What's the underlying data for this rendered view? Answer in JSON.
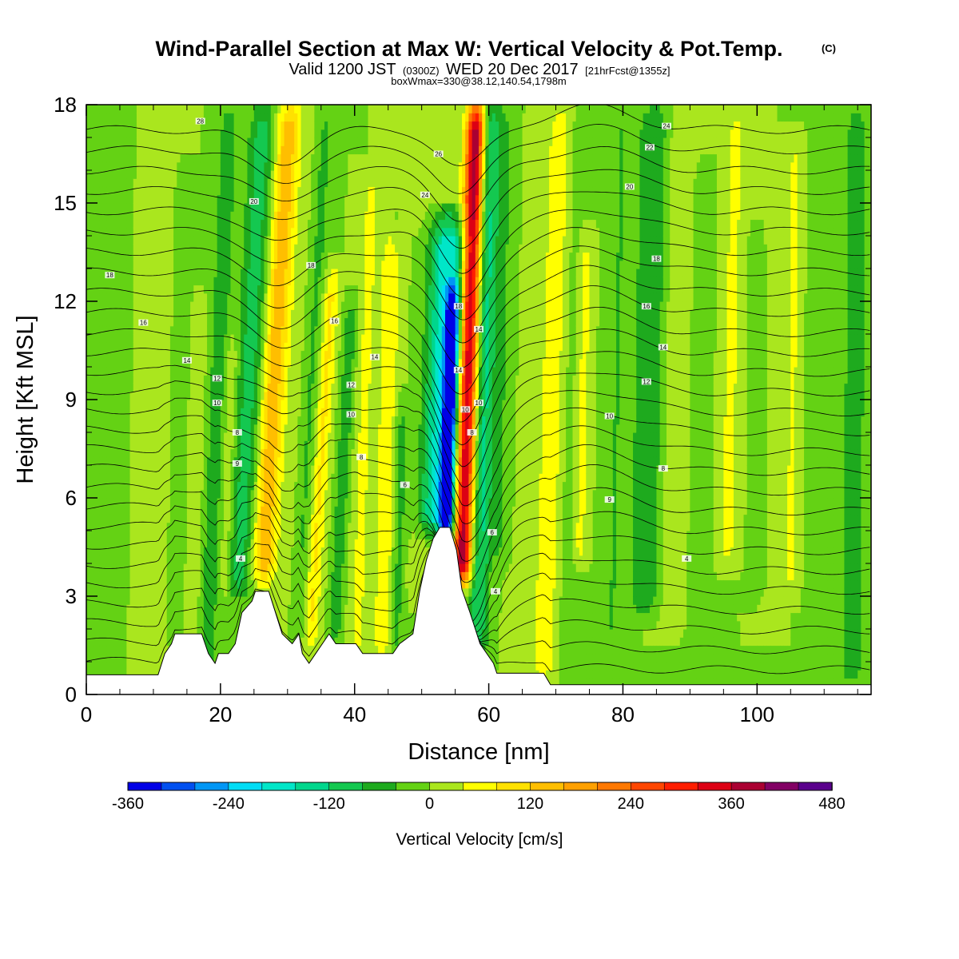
{
  "title": "Wind-Parallel Section at Max W: Vertical Velocity & Pot.Temp.",
  "title_mark": "(C)",
  "subtitle_parts": [
    "Valid 1200 JST",
    "(0300Z)",
    "WED 20 Dec 2017",
    "[21hrFcst@1355z]"
  ],
  "subtitle2": "boxWmax=330@38.12,140.54,1798m",
  "chart_data": {
    "type": "heatmap",
    "xlabel": "Distance [nm]",
    "ylabel": "Height [Kft MSL]",
    "xlim": [
      0,
      117
    ],
    "ylim": [
      0,
      18
    ],
    "x_ticks": [
      "0",
      "20",
      "40",
      "60",
      "80",
      "100"
    ],
    "y_ticks": [
      "0",
      "3",
      "6",
      "9",
      "12",
      "15",
      "18"
    ],
    "colorbar": {
      "title": "Vertical Velocity [cm/s]",
      "levels": [
        -360,
        -320,
        -280,
        -240,
        -200,
        -160,
        -120,
        -80,
        -40,
        0,
        40,
        80,
        120,
        160,
        200,
        240,
        280,
        320,
        360,
        400,
        440,
        480
      ],
      "colors": [
        "#0000e6",
        "#0050f0",
        "#0096f5",
        "#00dcf5",
        "#00e6c8",
        "#00d68c",
        "#14c850",
        "#1eaa1e",
        "#64d214",
        "#aae61e",
        "#ffff00",
        "#ffe100",
        "#ffbe00",
        "#ffa000",
        "#ff7800",
        "#ff4600",
        "#ff1e00",
        "#dc0014",
        "#aa0032",
        "#820064",
        "#5a008c"
      ],
      "tick_labels": [
        "-360",
        "-240",
        "-120",
        "0",
        "120",
        "240",
        "360",
        "480"
      ]
    },
    "terrain": [
      [
        0,
        0.6
      ],
      [
        10.7,
        0.6
      ],
      [
        11.7,
        1.25
      ],
      [
        12.7,
        1.55
      ],
      [
        13.2,
        1.85
      ],
      [
        17.2,
        1.85
      ],
      [
        18.2,
        1.25
      ],
      [
        19.2,
        0.95
      ],
      [
        19.7,
        1.25
      ],
      [
        21.2,
        1.25
      ],
      [
        22.2,
        1.55
      ],
      [
        23.2,
        2.5
      ],
      [
        24.7,
        2.85
      ],
      [
        25.2,
        3.15
      ],
      [
        27.2,
        3.15
      ],
      [
        28.2,
        2.5
      ],
      [
        29.2,
        1.85
      ],
      [
        30.7,
        1.55
      ],
      [
        31.7,
        1.85
      ],
      [
        32.2,
        1.25
      ],
      [
        33.2,
        0.95
      ],
      [
        34.2,
        1.25
      ],
      [
        35.2,
        1.55
      ],
      [
        36.2,
        1.85
      ],
      [
        37.2,
        1.55
      ],
      [
        40.2,
        1.55
      ],
      [
        41.2,
        1.25
      ],
      [
        45.7,
        1.25
      ],
      [
        46.7,
        1.55
      ],
      [
        48.7,
        1.85
      ],
      [
        49.7,
        3.15
      ],
      [
        50.7,
        4.1
      ],
      [
        51.7,
        4.75
      ],
      [
        52.7,
        5.1
      ],
      [
        54.2,
        5.1
      ],
      [
        55.2,
        4.4
      ],
      [
        56.0,
        3.2
      ],
      [
        57.2,
        2.5
      ],
      [
        58.7,
        1.55
      ],
      [
        60.7,
        0.95
      ],
      [
        61.2,
        0.65
      ],
      [
        68.2,
        0.65
      ],
      [
        69.2,
        0.3
      ],
      [
        117,
        0.3
      ]
    ],
    "w_field": {
      "background": 0,
      "features": [
        {
          "x": 54.2,
          "w": 0.9,
          "bot": 4.3,
          "top": 12.2,
          "lean": 0.15,
          "amp": -340
        },
        {
          "x": 53.2,
          "w": 3.0,
          "bot": 5.0,
          "top": 14.5,
          "lean": 0.18,
          "amp": -200
        },
        {
          "x": 56.8,
          "w": 1.4,
          "bot": 3.5,
          "top": 18,
          "lean": 0.15,
          "amp": 400
        },
        {
          "x": 59.2,
          "w": 1.4,
          "bot": 1.0,
          "top": 18,
          "lean": 0.12,
          "amp": -120
        },
        {
          "x": 27.8,
          "w": 1.8,
          "bot": 3.5,
          "top": 18,
          "lean": 0.28,
          "amp": 150
        },
        {
          "x": 24.2,
          "w": 2.0,
          "bot": 3.0,
          "top": 18,
          "lean": 0.25,
          "amp": -100
        },
        {
          "x": 19.5,
          "w": 1.6,
          "bot": 0,
          "top": 18,
          "lean": 0.2,
          "amp": -60
        },
        {
          "x": 35.5,
          "w": 1.2,
          "bot": 1.5,
          "top": 13,
          "lean": 0.3,
          "amp": 90
        },
        {
          "x": 38.8,
          "w": 1.0,
          "bot": 1.5,
          "top": 12,
          "lean": 0.25,
          "amp": -70
        },
        {
          "x": 45.0,
          "w": 1.5,
          "bot": 1.2,
          "top": 14,
          "lean": 0.1,
          "amp": 70
        },
        {
          "x": 47.0,
          "w": 1.0,
          "bot": 1.2,
          "top": 9,
          "lean": 0.12,
          "amp": -60
        },
        {
          "x": 61.5,
          "w": 2.0,
          "bot": 4,
          "top": 18,
          "lean": 0.1,
          "amp": -45
        },
        {
          "x": 66.0,
          "w": 1.6,
          "bot": 0.5,
          "top": 18,
          "lean": 0.15,
          "amp": 30
        },
        {
          "x": 69.5,
          "w": 1.7,
          "bot": 0.5,
          "top": 18,
          "lean": 0.15,
          "amp": 70
        },
        {
          "x": 72.5,
          "w": 2.0,
          "bot": 0.5,
          "top": 18,
          "lean": 0.1,
          "amp": -20
        },
        {
          "x": 74.0,
          "w": 1.2,
          "bot": 4,
          "top": 14,
          "lean": 0.1,
          "amp": 60
        },
        {
          "x": 79.0,
          "w": 1.8,
          "bot": 0.3,
          "top": 18,
          "lean": 0.1,
          "amp": -40
        },
        {
          "x": 83.8,
          "w": 2.2,
          "bot": 2.5,
          "top": 18,
          "lean": 0.1,
          "amp": -80
        },
        {
          "x": 88.0,
          "w": 1.8,
          "bot": 2.0,
          "top": 18,
          "lean": 0.1,
          "amp": 40
        },
        {
          "x": 91.5,
          "w": 1.6,
          "bot": 0.3,
          "top": 16,
          "lean": 0.05,
          "amp": -25
        },
        {
          "x": 96.0,
          "w": 1.5,
          "bot": 4,
          "top": 18,
          "lean": 0.1,
          "amp": 50
        },
        {
          "x": 100.5,
          "w": 1.8,
          "bot": 3,
          "top": 14,
          "lean": -0.1,
          "amp": -20
        },
        {
          "x": 105.3,
          "w": 1.2,
          "bot": 3,
          "top": 17,
          "lean": 0.05,
          "amp": 45
        },
        {
          "x": 109.0,
          "w": 1.5,
          "bot": 0.3,
          "top": 18,
          "lean": 0.05,
          "amp": -25
        },
        {
          "x": 114.5,
          "w": 2.0,
          "bot": 0.3,
          "top": 18,
          "lean": 0.05,
          "amp": -60
        },
        {
          "x": 4.0,
          "w": 2.5,
          "bot": 0.6,
          "top": 18,
          "lean": 0.1,
          "amp": -25
        },
        {
          "x": 10.0,
          "w": 3.0,
          "bot": 0.6,
          "top": 18,
          "lean": 0.05,
          "amp": 25
        },
        {
          "x": 14.0,
          "w": 1.5,
          "bot": 1.5,
          "top": 16,
          "lean": 0.1,
          "amp": -30
        },
        {
          "x": 16.5,
          "w": 1.2,
          "bot": 1.5,
          "top": 12,
          "lean": 0.1,
          "amp": 40
        },
        {
          "x": 21.5,
          "w": 1.0,
          "bot": 3.0,
          "top": 11,
          "lean": 0.15,
          "amp": 50
        },
        {
          "x": 31.5,
          "w": 1.5,
          "bot": 1.5,
          "top": 18,
          "lean": 0.25,
          "amp": 10
        },
        {
          "x": 33.5,
          "w": 1.3,
          "bot": 1.5,
          "top": 18,
          "lean": 0.25,
          "amp": -50
        },
        {
          "x": 41.5,
          "w": 1.3,
          "bot": 1.2,
          "top": 16,
          "lean": 0.15,
          "amp": 50
        },
        {
          "x": 50.0,
          "w": 1.8,
          "bot": 3.0,
          "top": 18,
          "lean": 0.12,
          "amp": 20
        },
        {
          "x": 102.5,
          "w": 1.3,
          "bot": 2,
          "top": 17,
          "lean": 0.05,
          "amp": 30
        }
      ]
    },
    "contour_labels": [
      {
        "x": 17,
        "y": 17.5,
        "text": "28"
      },
      {
        "x": 25,
        "y": 15.05,
        "text": "20"
      },
      {
        "x": 3.5,
        "y": 12.8,
        "text": "18"
      },
      {
        "x": 33.5,
        "y": 13.1,
        "text": "18"
      },
      {
        "x": 8.5,
        "y": 11.35,
        "text": "16"
      },
      {
        "x": 37,
        "y": 11.4,
        "text": "16"
      },
      {
        "x": 15,
        "y": 10.2,
        "text": "14"
      },
      {
        "x": 43,
        "y": 10.3,
        "text": "14"
      },
      {
        "x": 19.5,
        "y": 9.65,
        "text": "12"
      },
      {
        "x": 39.5,
        "y": 9.45,
        "text": "12"
      },
      {
        "x": 19.5,
        "y": 8.9,
        "text": "10"
      },
      {
        "x": 39.5,
        "y": 8.55,
        "text": "10"
      },
      {
        "x": 22.5,
        "y": 8.0,
        "text": "8"
      },
      {
        "x": 41,
        "y": 7.25,
        "text": "8"
      },
      {
        "x": 22.5,
        "y": 7.05,
        "text": "9"
      },
      {
        "x": 47.5,
        "y": 6.4,
        "text": "6"
      },
      {
        "x": 23,
        "y": 4.15,
        "text": "4"
      },
      {
        "x": 52.5,
        "y": 16.5,
        "text": "26"
      },
      {
        "x": 50.5,
        "y": 15.25,
        "text": "24"
      },
      {
        "x": 55.5,
        "y": 11.85,
        "text": "18"
      },
      {
        "x": 58.5,
        "y": 11.15,
        "text": "14"
      },
      {
        "x": 55.5,
        "y": 9.9,
        "text": "14"
      },
      {
        "x": 58.5,
        "y": 8.9,
        "text": "10"
      },
      {
        "x": 56.5,
        "y": 8.7,
        "text": "10"
      },
      {
        "x": 57.5,
        "y": 8.0,
        "text": "8"
      },
      {
        "x": 60.5,
        "y": 4.95,
        "text": "6"
      },
      {
        "x": 61,
        "y": 3.15,
        "text": "4"
      },
      {
        "x": 86.5,
        "y": 17.35,
        "text": "24"
      },
      {
        "x": 84,
        "y": 16.7,
        "text": "22"
      },
      {
        "x": 81,
        "y": 15.5,
        "text": "20"
      },
      {
        "x": 85,
        "y": 13.3,
        "text": "18"
      },
      {
        "x": 83.5,
        "y": 11.85,
        "text": "16"
      },
      {
        "x": 86,
        "y": 10.6,
        "text": "14"
      },
      {
        "x": 83.5,
        "y": 9.55,
        "text": "12"
      },
      {
        "x": 78,
        "y": 8.5,
        "text": "10"
      },
      {
        "x": 86,
        "y": 6.9,
        "text": "8"
      },
      {
        "x": 78,
        "y": 5.95,
        "text": "9"
      },
      {
        "x": 89.5,
        "y": 4.15,
        "text": "4"
      }
    ]
  }
}
